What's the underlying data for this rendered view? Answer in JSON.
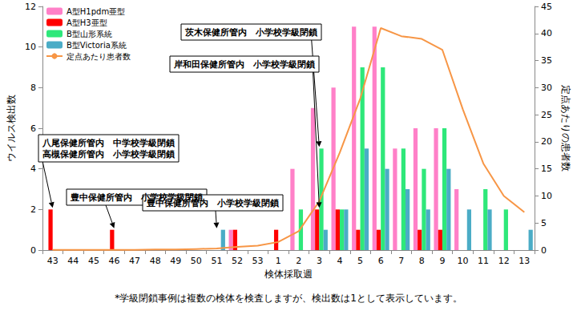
{
  "chart_data": {
    "type": "bar",
    "x_label": "検体採取週",
    "y_label": "ウイルス検出数",
    "y2_label": "定点あたりの患者数",
    "categories": [
      "43",
      "44",
      "45",
      "46",
      "47",
      "48",
      "49",
      "50",
      "51",
      "52",
      "53",
      "1",
      "2",
      "3",
      "4",
      "5",
      "6",
      "7",
      "8",
      "9",
      "10",
      "11",
      "12",
      "13"
    ],
    "ylim": [
      0,
      12
    ],
    "yticks": [
      0,
      2,
      4,
      6,
      8,
      10,
      12
    ],
    "y2lim": [
      0,
      45
    ],
    "y2ticks": [
      0,
      5,
      10,
      15,
      20,
      25,
      30,
      35,
      40,
      45
    ],
    "grid": false,
    "legend": "upper left",
    "series": [
      {
        "name": "A型H1pdm亜型",
        "type": "bar",
        "color": "#ff80c8",
        "values": [
          0,
          0,
          0,
          0,
          0,
          0,
          0,
          0,
          0,
          1,
          0,
          0,
          4,
          7,
          8,
          11,
          11,
          5,
          6,
          6,
          3,
          0,
          0,
          0
        ]
      },
      {
        "name": "A型H3亜型",
        "type": "bar",
        "color": "#ff0000",
        "values": [
          2,
          0,
          0,
          1,
          0,
          0,
          0,
          0,
          0,
          1,
          0,
          1,
          0,
          2,
          2,
          1,
          1,
          0,
          1,
          1,
          0,
          0,
          0,
          0
        ]
      },
      {
        "name": "B型山形系統",
        "type": "bar",
        "color": "#2ee87a",
        "values": [
          0,
          0,
          0,
          0,
          0,
          0,
          0,
          0,
          0,
          0,
          0,
          0,
          2,
          5,
          2,
          9,
          9,
          5,
          4,
          6,
          0,
          3,
          2,
          0
        ]
      },
      {
        "name": "B型Victoria系統",
        "type": "bar",
        "color": "#4bacc6",
        "values": [
          0,
          0,
          0,
          0,
          0,
          0,
          0,
          0,
          1,
          0,
          0,
          0,
          0,
          1,
          2,
          5,
          4,
          3,
          2,
          4,
          2,
          2,
          0,
          1
        ]
      },
      {
        "name": "定点あたり患者数",
        "type": "line",
        "axis": "y2",
        "color": "#f79646",
        "marker": "none",
        "values": [
          0.05,
          0.05,
          0.05,
          0.05,
          0.05,
          0.1,
          0.1,
          0.2,
          0.3,
          0.6,
          0.8,
          1.5,
          3.5,
          9,
          18,
          28,
          41,
          39.5,
          39,
          37,
          26,
          16,
          10,
          7
        ]
      }
    ],
    "annotations": [
      {
        "text": "八尾保健所管内　中学校学級閉鎖\n高槻保健所管内　小学校学級閉鎖",
        "x": "43",
        "y": 2
      },
      {
        "text": "豊中保健所管内　小学校学級閉鎖",
        "x": "46",
        "y": 1
      },
      {
        "text": "豊中保健所管内　小学校学級閉鎖",
        "x": "51",
        "y": 1
      },
      {
        "text": "岸和田保健所管内　小学校学級閉鎖",
        "x": "3",
        "y": 2
      },
      {
        "text": "茨木保健所管内　小学校学級閉鎖",
        "x": "3",
        "y": 5
      }
    ],
    "footnote": "*学級閉鎖事例は複数の検体を検査しますが、検出数は1として表示しています。"
  }
}
